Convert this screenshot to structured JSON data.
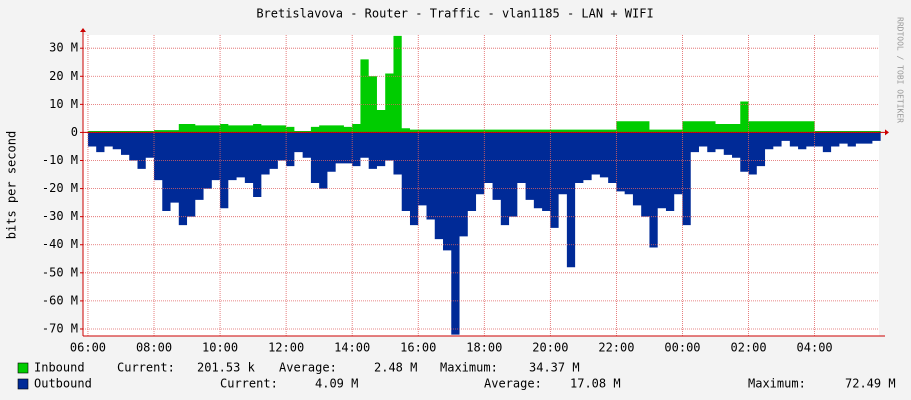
{
  "chart_data": {
    "type": "area",
    "title": "Bretislavova - Router - Traffic - vlan1185 - LAN + WIFI",
    "y_label": "bits per second",
    "watermark": "RRDTOOL / TOBI OETIKER",
    "grid": true,
    "xlim": [
      5.85,
      29.95
    ],
    "ylim": [
      -72.5,
      34.7
    ],
    "xticks": [
      {
        "value": 6,
        "label": "06:00"
      },
      {
        "value": 8,
        "label": "08:00"
      },
      {
        "value": 10,
        "label": "10:00"
      },
      {
        "value": 12,
        "label": "12:00"
      },
      {
        "value": 14,
        "label": "14:00"
      },
      {
        "value": 16,
        "label": "16:00"
      },
      {
        "value": 18,
        "label": "18:00"
      },
      {
        "value": 20,
        "label": "20:00"
      },
      {
        "value": 22,
        "label": "22:00"
      },
      {
        "value": 24,
        "label": "00:00"
      },
      {
        "value": 26,
        "label": "02:00"
      },
      {
        "value": 28,
        "label": "04:00"
      }
    ],
    "yticks": [
      {
        "value": 30,
        "label": "30 M"
      },
      {
        "value": 20,
        "label": "20 M"
      },
      {
        "value": 10,
        "label": "10 M"
      },
      0,
      {
        "value": -10,
        "label": "-10 M"
      },
      {
        "value": -20,
        "label": "-20 M"
      },
      {
        "value": -30,
        "label": "-30 M"
      },
      {
        "value": -40,
        "label": "-40 M"
      },
      {
        "value": -50,
        "label": "-50 M"
      },
      {
        "value": -60,
        "label": "-60 M"
      },
      {
        "value": -70,
        "label": "-70 M"
      }
    ],
    "x": [
      6,
      6.25,
      6.5,
      6.75,
      7,
      7.25,
      7.5,
      7.75,
      8,
      8.25,
      8.5,
      8.75,
      9,
      9.25,
      9.5,
      9.75,
      10,
      10.25,
      10.5,
      10.75,
      11,
      11.25,
      11.5,
      11.75,
      12,
      12.25,
      12.5,
      12.75,
      13,
      13.25,
      13.5,
      13.75,
      14,
      14.25,
      14.5,
      14.75,
      15,
      15.25,
      15.5,
      15.75,
      16,
      16.25,
      16.5,
      16.75,
      17,
      17.25,
      17.5,
      17.75,
      18,
      18.25,
      18.5,
      18.75,
      19,
      19.25,
      19.5,
      19.75,
      20,
      20.25,
      20.5,
      20.75,
      21,
      21.25,
      21.5,
      21.75,
      22,
      22.25,
      22.5,
      22.75,
      23,
      23.25,
      23.5,
      23.75,
      24,
      24.25,
      24.5,
      24.75,
      25,
      25.25,
      25.5,
      25.75,
      26,
      26.25,
      26.5,
      26.75,
      27,
      27.25,
      27.5,
      27.75,
      28,
      28.25,
      28.5,
      28.75,
      29,
      29.25,
      29.5,
      29.75
    ],
    "series": [
      {
        "name": "Inbound",
        "color": "#00cc00",
        "stats": [
          {
            "label": "Current:",
            "text": "201.53 k"
          },
          {
            "label": "Average:",
            "text": "2.48 M"
          },
          {
            "label": "Maximum:",
            "text": "34.37 M"
          }
        ],
        "values": [
          0.5,
          0.5,
          0.5,
          0.5,
          0.5,
          0.5,
          0.5,
          0.5,
          0.8,
          0.8,
          0.8,
          3,
          3,
          2.5,
          2.5,
          2.5,
          3,
          2.5,
          2.5,
          2.5,
          3,
          2.5,
          2.5,
          2.5,
          2,
          0.5,
          0.5,
          2,
          2.5,
          2.5,
          2.5,
          2,
          3,
          26,
          20,
          8,
          21,
          34.37,
          1.5,
          1,
          1,
          1,
          1,
          1,
          1,
          1,
          1,
          1,
          1,
          1,
          1,
          1,
          1,
          1,
          1,
          1,
          1,
          1,
          1,
          1,
          1,
          1,
          1,
          1,
          4,
          4,
          4,
          4,
          1,
          1,
          1,
          1,
          4,
          4,
          4,
          4,
          3,
          3,
          3,
          11,
          4,
          4,
          4,
          4,
          4,
          4,
          4,
          4,
          0.5,
          0.5,
          0.5,
          0.5,
          0.5,
          0.5,
          0.5,
          0.5
        ]
      },
      {
        "name": "Outbound",
        "color": "#002a97",
        "stats": [
          {
            "label": "Current:",
            "text": "4.09 M"
          },
          {
            "label": "Average:",
            "text": "17.08 M"
          },
          {
            "label": "Maximum:",
            "text": "72.49 M"
          }
        ],
        "values": [
          -5,
          -7,
          -5,
          -6,
          -8,
          -10,
          -13,
          -9,
          -17,
          -28,
          -25,
          -33,
          -30,
          -24,
          -20,
          -17,
          -27,
          -17,
          -16,
          -18,
          -23,
          -15,
          -13,
          -10,
          -12,
          -7,
          -9,
          -18,
          -20,
          -14,
          -11,
          -11,
          -12,
          -9,
          -13,
          -12,
          -10,
          -15,
          -28,
          -33,
          -26,
          -31,
          -38,
          -42,
          -72,
          -37,
          -28,
          -22,
          -18,
          -24,
          -33,
          -30,
          -18,
          -24,
          -27,
          -28,
          -34,
          -22,
          -48,
          -18,
          -17,
          -15,
          -16,
          -18,
          -21,
          -22,
          -26,
          -30,
          -41,
          -27,
          -28,
          -22,
          -33,
          -7,
          -5,
          -7,
          -6,
          -8,
          -9,
          -14,
          -15,
          -12,
          -6,
          -5,
          -3,
          -5,
          -6,
          -5,
          -5,
          -7,
          -5,
          -4,
          -5,
          -4,
          -4,
          -3
        ]
      }
    ]
  }
}
